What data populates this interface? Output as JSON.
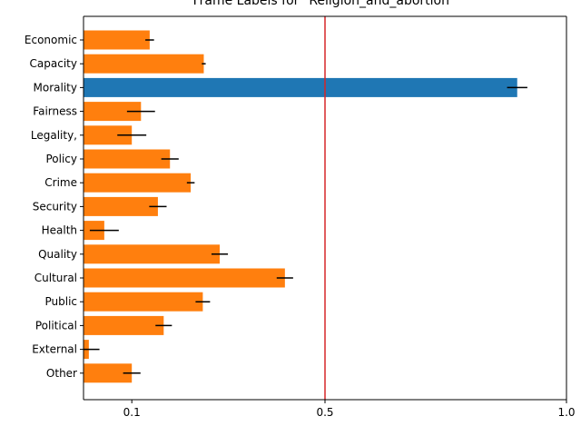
{
  "chart_data": {
    "type": "bar",
    "orientation": "horizontal",
    "title": "Frame Labels for \"Religion_and_abortion\"",
    "xlabel": "",
    "ylabel": "",
    "xlim": [
      0.0,
      1.0
    ],
    "xticks": [
      0.1,
      0.5,
      1.0
    ],
    "xtick_labels": [
      "0.1",
      "0.5",
      "1.0"
    ],
    "categories": [
      "Economic",
      "Capacity",
      "Morality",
      "Fairness",
      "Legality,",
      "Policy",
      "Crime",
      "Security",
      "Health",
      "Quality",
      "Cultural",
      "Public",
      "Political",
      "External",
      "Other"
    ],
    "values": [
      0.137,
      0.249,
      0.898,
      0.119,
      0.1,
      0.179,
      0.222,
      0.154,
      0.043,
      0.282,
      0.417,
      0.247,
      0.166,
      0.011,
      0.1
    ],
    "errors": [
      0.009,
      0.004,
      0.021,
      0.029,
      0.03,
      0.018,
      0.008,
      0.018,
      0.03,
      0.017,
      0.017,
      0.015,
      0.017,
      0.022,
      0.018
    ],
    "highlight_category": "Morality",
    "reference_line": {
      "x": 0.5,
      "color": "#d62728"
    },
    "colors": {
      "default_bar": "#ff7f0e",
      "highlight_bar": "#1f77b4",
      "error_bar": "#000000",
      "axes": "#000000"
    },
    "grid": false,
    "legend": "none"
  }
}
